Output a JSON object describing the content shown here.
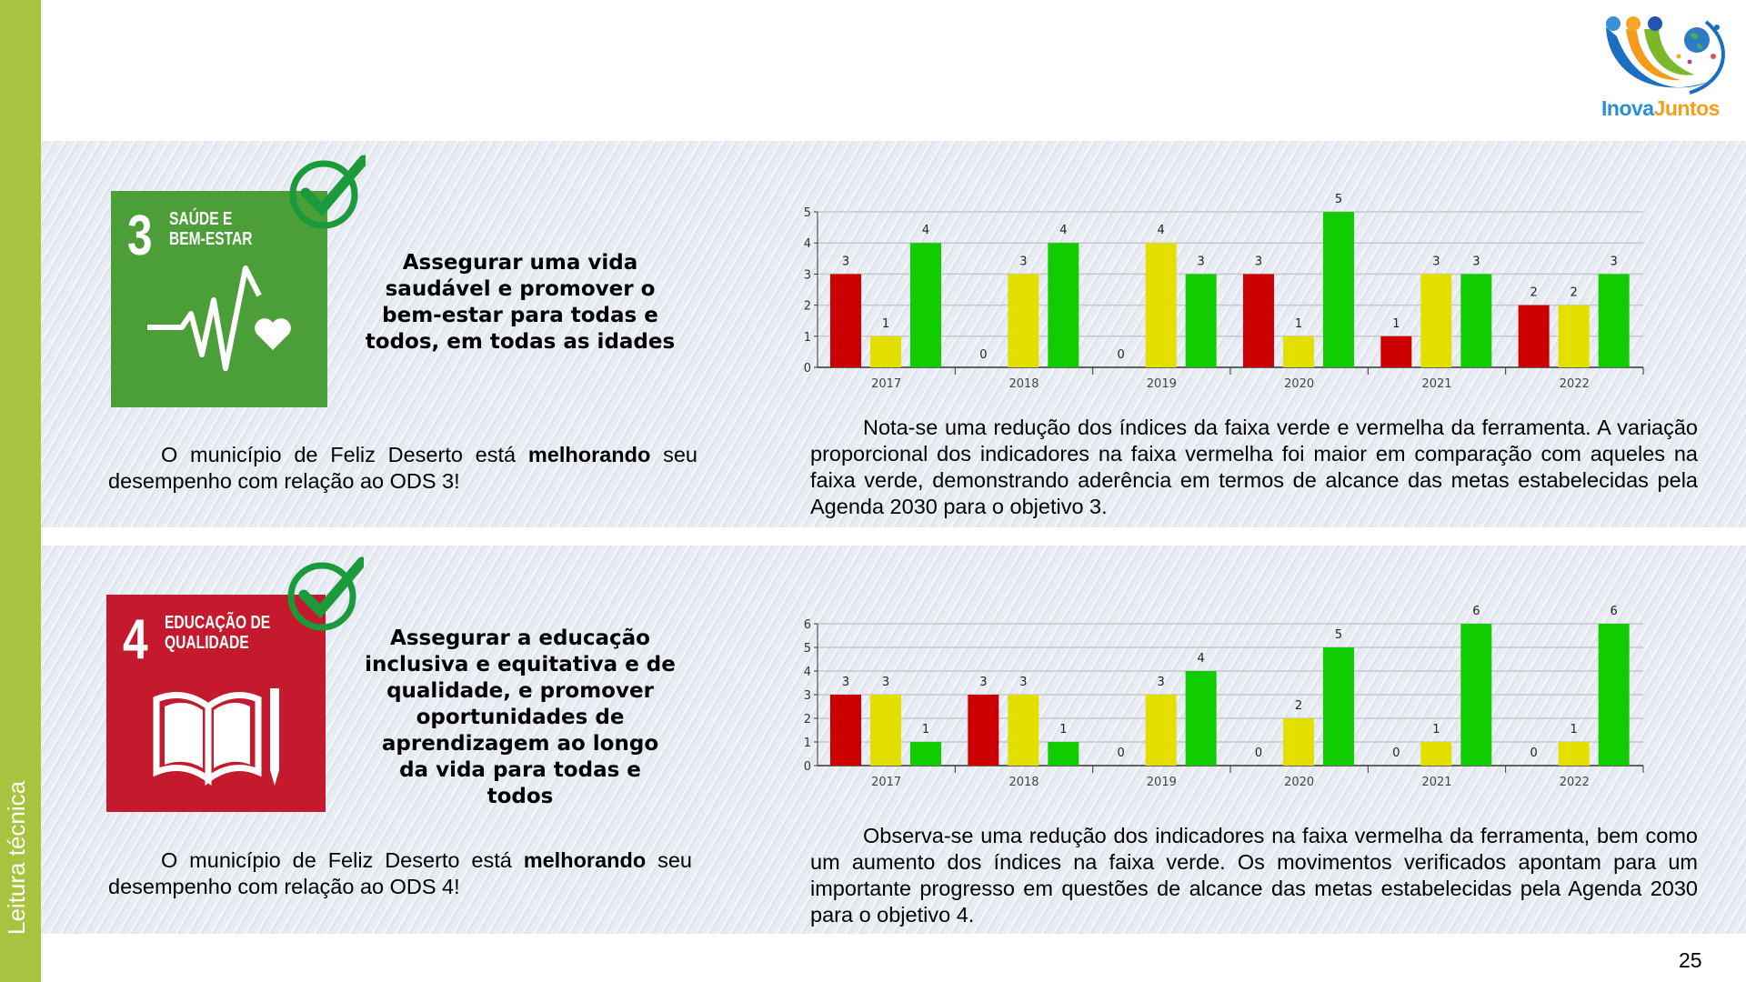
{
  "sidebar": {
    "label": "Leitura técnica"
  },
  "logo": {
    "brand_part1": "Inova",
    "brand_part2": "Juntos"
  },
  "page_number": "25",
  "sections": [
    {
      "tile_number": "3",
      "tile_name_line1": "SAÚDE E",
      "tile_name_line2": "BEM-ESTAR",
      "tile_color": "#4c9f38",
      "goal_text": "Assegurar uma vida saudável e promover o bem-estar para todas e todos, em todas as idades",
      "status_prefix": "O município de Feliz Deserto está ",
      "status_bold": "melhorando",
      "status_suffix": " seu desempenho com relação ao ODS 3!",
      "analysis": "Nota-se uma redução dos índices da faixa verde e vermelha da ferramenta. A variação proporcional dos indicadores na faixa vermelha foi maior em comparação com aqueles na faixa verde, demonstrando aderência em termos de alcance das metas estabelecidas pela Agenda 2030 para o objetivo 3."
    },
    {
      "tile_number": "4",
      "tile_name_line1": "EDUCAÇÃO DE",
      "tile_name_line2": "QUALIDADE",
      "tile_color": "#c5192d",
      "goal_text": "Assegurar a educação inclusiva e equitativa e de qualidade, e promover oportunidades de aprendizagem ao longo da vida para todas e todos",
      "status_prefix": "O município de Feliz Deserto está ",
      "status_bold": "melhorando",
      "status_suffix": " seu desempenho com relação ao ODS 4!",
      "analysis": "Observa-se uma redução dos indicadores na faixa vermelha da ferramenta, bem como um aumento dos índices na faixa verde. Os movimentos verificados apontam para um importante progresso em questões de alcance das metas estabelecidas pela Agenda 2030 para o objetivo 4."
    }
  ],
  "chart_data": [
    {
      "type": "bar",
      "title": "",
      "categories": [
        "2017",
        "2018",
        "2019",
        "2020",
        "2021",
        "2022"
      ],
      "ylim": [
        0,
        5
      ],
      "yticks": [
        0,
        1,
        2,
        3,
        4,
        5
      ],
      "grid": true,
      "series": [
        {
          "name": "vermelha",
          "color": "#cc0000",
          "values": [
            3,
            0,
            0,
            3,
            1,
            2
          ]
        },
        {
          "name": "amarela",
          "color": "#e3e000",
          "values": [
            1,
            3,
            4,
            1,
            3,
            2
          ]
        },
        {
          "name": "verde",
          "color": "#11cc00",
          "values": [
            4,
            4,
            3,
            5,
            3,
            3
          ]
        }
      ]
    },
    {
      "type": "bar",
      "title": "",
      "categories": [
        "2017",
        "2018",
        "2019",
        "2020",
        "2021",
        "2022"
      ],
      "ylim": [
        0,
        6
      ],
      "yticks": [
        0,
        1,
        2,
        3,
        4,
        5,
        6
      ],
      "grid": true,
      "series": [
        {
          "name": "vermelha",
          "color": "#cc0000",
          "values": [
            3,
            3,
            0,
            0,
            0,
            0
          ]
        },
        {
          "name": "amarela",
          "color": "#e3e000",
          "values": [
            3,
            3,
            3,
            2,
            1,
            1
          ]
        },
        {
          "name": "verde",
          "color": "#11cc00",
          "values": [
            1,
            1,
            4,
            5,
            6,
            6
          ]
        }
      ]
    }
  ]
}
